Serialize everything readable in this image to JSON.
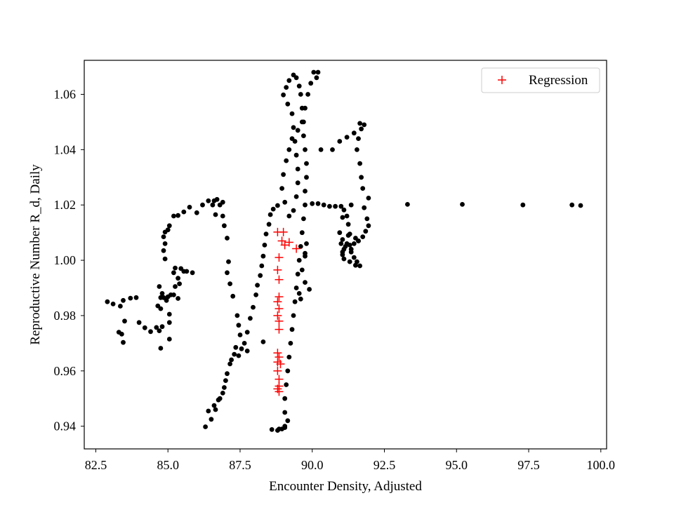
{
  "chart_data": {
    "type": "scatter",
    "title": "",
    "xlabel": "Encounter Density, Adjusted",
    "ylabel": "Reproductive Number R_d, Daily",
    "xlim": [
      82.1,
      100.2
    ],
    "ylim": [
      0.9318,
      1.0723
    ],
    "xticks": [
      82.5,
      85.0,
      87.5,
      90.0,
      92.5,
      95.0,
      97.5,
      100.0
    ],
    "xtick_labels": [
      "82.5",
      "85.0",
      "87.5",
      "90.0",
      "92.5",
      "95.0",
      "97.5",
      "100.0"
    ],
    "yticks": [
      0.94,
      0.96,
      0.98,
      1.0,
      1.02,
      1.04,
      1.06
    ],
    "ytick_labels": [
      "0.94",
      "0.96",
      "0.98",
      "1.00",
      "1.02",
      "1.04",
      "1.06"
    ],
    "grid": false,
    "legend_position": "top-right",
    "series": [
      {
        "name": "",
        "marker": "circle",
        "color": "#000000",
        "points": [
          [
            82.9,
            0.985
          ],
          [
            83.1,
            0.9842
          ],
          [
            83.3,
            0.974
          ],
          [
            83.45,
            0.9703
          ],
          [
            83.4,
            0.9733
          ],
          [
            83.35,
            0.9834
          ],
          [
            83.45,
            0.9855
          ],
          [
            83.5,
            0.978
          ],
          [
            83.7,
            0.9863
          ],
          [
            83.9,
            0.9865
          ],
          [
            84.0,
            0.9775
          ],
          [
            84.2,
            0.9756
          ],
          [
            84.4,
            0.9742
          ],
          [
            84.75,
            0.9682
          ],
          [
            84.6,
            0.9757
          ],
          [
            84.7,
            0.9745
          ],
          [
            84.8,
            0.976
          ],
          [
            84.75,
            0.9825
          ],
          [
            84.65,
            0.9835
          ],
          [
            84.75,
            0.9865
          ],
          [
            84.7,
            0.9905
          ],
          [
            84.8,
            0.988
          ],
          [
            84.85,
            0.9865
          ],
          [
            84.95,
            0.9855
          ],
          [
            85.05,
            0.9805
          ],
          [
            85.05,
            0.9715
          ],
          [
            85.05,
            0.9775
          ],
          [
            85.1,
            0.9875
          ],
          [
            85.0,
            0.9868
          ],
          [
            85.2,
            0.9875
          ],
          [
            85.35,
            0.9862
          ],
          [
            85.25,
            0.9905
          ],
          [
            85.35,
            0.9935
          ],
          [
            85.4,
            0.9915
          ],
          [
            85.55,
            0.996
          ],
          [
            85.65,
            0.996
          ],
          [
            85.85,
            0.9955
          ],
          [
            85.25,
            0.9972
          ],
          [
            85.45,
            0.997
          ],
          [
            85.2,
            0.9955
          ],
          [
            84.9,
            1.0005
          ],
          [
            84.85,
            1.0035
          ],
          [
            84.9,
            1.006
          ],
          [
            84.85,
            1.0085
          ],
          [
            84.9,
            1.0102
          ],
          [
            85.0,
            1.011
          ],
          [
            85.05,
            1.0125
          ],
          [
            85.2,
            1.016
          ],
          [
            85.35,
            1.0162
          ],
          [
            85.55,
            1.0175
          ],
          [
            85.75,
            1.0192
          ],
          [
            86.0,
            1.0172
          ],
          [
            86.2,
            1.02
          ],
          [
            86.4,
            1.0215
          ],
          [
            86.55,
            1.02
          ],
          [
            86.65,
            1.0165
          ],
          [
            86.6,
            1.0215
          ],
          [
            86.7,
            1.022
          ],
          [
            86.8,
            1.02
          ],
          [
            86.9,
            1.021
          ],
          [
            86.9,
            1.016
          ],
          [
            86.95,
            1.0125
          ],
          [
            87.05,
            1.008
          ],
          [
            87.1,
            0.9995
          ],
          [
            87.05,
            0.9955
          ],
          [
            87.15,
            0.9915
          ],
          [
            87.25,
            0.987
          ],
          [
            87.4,
            0.98
          ],
          [
            87.45,
            0.9765
          ],
          [
            87.5,
            0.973
          ],
          [
            87.35,
            0.9685
          ],
          [
            87.2,
            0.964
          ],
          [
            87.0,
            0.9565
          ],
          [
            86.9,
            0.952
          ],
          [
            86.75,
            0.9495
          ],
          [
            86.65,
            0.946
          ],
          [
            86.5,
            0.9425
          ],
          [
            86.3,
            0.9398
          ],
          [
            86.4,
            0.9455
          ],
          [
            86.6,
            0.9475
          ],
          [
            86.8,
            0.95
          ],
          [
            86.95,
            0.954
          ],
          [
            87.05,
            0.959
          ],
          [
            87.15,
            0.9625
          ],
          [
            87.3,
            0.966
          ],
          [
            87.45,
            0.9655
          ],
          [
            87.55,
            0.968
          ],
          [
            87.65,
            0.97
          ],
          [
            87.75,
            0.974
          ],
          [
            87.85,
            0.979
          ],
          [
            87.95,
            0.983
          ],
          [
            88.05,
            0.9875
          ],
          [
            88.1,
            0.991
          ],
          [
            88.2,
            0.9945
          ],
          [
            88.25,
            0.998
          ],
          [
            88.3,
            1.0015
          ],
          [
            88.35,
            1.0055
          ],
          [
            88.4,
            1.0095
          ],
          [
            88.5,
            1.013
          ],
          [
            88.55,
            1.0165
          ],
          [
            88.65,
            1.0185
          ],
          [
            88.8,
            1.0198
          ],
          [
            88.6,
            0.9388
          ],
          [
            88.8,
            0.9385
          ],
          [
            88.95,
            0.939
          ],
          [
            89.05,
            0.94
          ],
          [
            89.15,
            0.942
          ],
          [
            89.05,
            0.945
          ],
          [
            89.05,
            0.95
          ],
          [
            89.1,
            0.955
          ],
          [
            89.15,
            0.96
          ],
          [
            89.2,
            0.965
          ],
          [
            89.25,
            0.97
          ],
          [
            89.3,
            0.975
          ],
          [
            89.35,
            0.98
          ],
          [
            89.4,
            0.985
          ],
          [
            89.45,
            0.99
          ],
          [
            89.5,
            0.995
          ],
          [
            89.55,
            1.0
          ],
          [
            89.6,
            1.005
          ],
          [
            89.65,
            1.01
          ],
          [
            89.7,
            1.015
          ],
          [
            89.75,
            1.02
          ],
          [
            89.75,
            1.025
          ],
          [
            89.8,
            1.03
          ],
          [
            89.8,
            1.035
          ],
          [
            89.75,
            1.04
          ],
          [
            89.7,
            1.045
          ],
          [
            89.7,
            1.05
          ],
          [
            89.65,
            1.055
          ],
          [
            89.6,
            1.06
          ],
          [
            89.55,
            1.063
          ],
          [
            89.45,
            1.066
          ],
          [
            89.35,
            1.067
          ],
          [
            89.2,
            1.065
          ],
          [
            89.1,
            1.0625
          ],
          [
            89.0,
            1.0598
          ],
          [
            89.15,
            1.0565
          ],
          [
            89.3,
            1.053
          ],
          [
            89.35,
            1.048
          ],
          [
            89.4,
            1.043
          ],
          [
            89.45,
            1.038
          ],
          [
            89.5,
            1.033
          ],
          [
            89.5,
            1.028
          ],
          [
            89.45,
            1.023
          ],
          [
            89.35,
            1.018
          ],
          [
            89.2,
            1.016
          ],
          [
            89.05,
            1.021
          ],
          [
            88.95,
            1.026
          ],
          [
            89.0,
            1.031
          ],
          [
            89.1,
            1.036
          ],
          [
            89.2,
            1.04
          ],
          [
            89.3,
            1.044
          ],
          [
            89.5,
            1.047
          ],
          [
            89.65,
            1.05
          ],
          [
            89.75,
            1.055
          ],
          [
            89.85,
            1.06
          ],
          [
            89.95,
            1.064
          ],
          [
            90.05,
            1.068
          ],
          [
            90.2,
            1.068
          ],
          [
            90.15,
            1.066
          ],
          [
            89.55,
            0.988
          ],
          [
            89.65,
            0.9965
          ],
          [
            89.75,
            1.0025
          ],
          [
            89.8,
            1.006
          ],
          [
            89.75,
            1.0015
          ],
          [
            89.75,
            0.992
          ],
          [
            89.6,
            0.986
          ],
          [
            89.9,
            0.9895
          ],
          [
            90.0,
            1.0205
          ],
          [
            90.2,
            1.0205
          ],
          [
            90.4,
            1.02
          ],
          [
            90.6,
            1.0195
          ],
          [
            90.8,
            1.0195
          ],
          [
            91.0,
            1.0195
          ],
          [
            91.1,
            1.0182
          ],
          [
            91.2,
            1.016
          ],
          [
            91.25,
            1.013
          ],
          [
            91.25,
            1.009
          ],
          [
            91.2,
            1.006
          ],
          [
            91.1,
            1.004
          ],
          [
            91.05,
            1.0075
          ],
          [
            91.0,
            1.006
          ],
          [
            91.05,
            1.003
          ],
          [
            91.1,
            1.0005
          ],
          [
            91.3,
            0.9995
          ],
          [
            91.5,
            0.9982
          ],
          [
            91.65,
            0.998
          ],
          [
            91.55,
            0.9995
          ],
          [
            91.45,
            1.001
          ],
          [
            91.35,
            1.003
          ],
          [
            91.3,
            1.0055
          ],
          [
            91.45,
            1.006
          ],
          [
            91.6,
            1.007
          ],
          [
            91.75,
            1.0085
          ],
          [
            91.85,
            1.0105
          ],
          [
            91.95,
            1.0125
          ],
          [
            91.9,
            1.015
          ],
          [
            91.8,
            1.019
          ],
          [
            91.95,
            1.0225
          ],
          [
            91.75,
            1.026
          ],
          [
            91.7,
            1.03
          ],
          [
            91.65,
            1.035
          ],
          [
            91.55,
            1.04
          ],
          [
            91.6,
            1.044
          ],
          [
            91.7,
            1.0475
          ],
          [
            91.8,
            1.049
          ],
          [
            91.65,
            1.0495
          ],
          [
            91.45,
            1.046
          ],
          [
            91.2,
            1.0445
          ],
          [
            90.95,
            1.043
          ],
          [
            90.7,
            1.04
          ],
          [
            90.3,
            1.04
          ],
          [
            91.35,
            1.02
          ],
          [
            91.05,
            1.0155
          ],
          [
            90.95,
            1.01
          ],
          [
            91.3,
            1.0095
          ],
          [
            91.5,
            1.008
          ],
          [
            91.6,
            1.007
          ],
          [
            91.35,
            1.004
          ],
          [
            91.15,
            1.005
          ],
          [
            91.05,
            1.002
          ],
          [
            93.3,
            1.0202
          ],
          [
            95.2,
            1.0202
          ],
          [
            97.3,
            1.02
          ],
          [
            99.0,
            1.02
          ],
          [
            99.3,
            1.0198
          ],
          [
            88.3,
            0.9705
          ],
          [
            87.75,
            0.9672
          ],
          [
            88.85,
            0.939
          ],
          [
            89.05,
            0.9395
          ]
        ]
      },
      {
        "name": "Regression",
        "marker": "plus",
        "color": "#ff0000",
        "points": [
          [
            88.8,
            1.0102
          ],
          [
            89.0,
            1.0102
          ],
          [
            89.2,
            1.0065
          ],
          [
            89.05,
            1.0055
          ],
          [
            88.95,
            1.007
          ],
          [
            89.45,
            1.0042
          ],
          [
            88.85,
            1.001
          ],
          [
            88.8,
            0.9965
          ],
          [
            88.85,
            0.993
          ],
          [
            88.85,
            0.9868
          ],
          [
            88.8,
            0.985
          ],
          [
            88.85,
            0.9825
          ],
          [
            88.8,
            0.98
          ],
          [
            88.85,
            0.978
          ],
          [
            88.85,
            0.975
          ],
          [
            88.8,
            0.9665
          ],
          [
            88.85,
            0.965
          ],
          [
            88.8,
            0.9632
          ],
          [
            88.9,
            0.9625
          ],
          [
            88.8,
            0.96
          ],
          [
            88.85,
            0.957
          ],
          [
            88.85,
            0.9545
          ],
          [
            88.8,
            0.9535
          ],
          [
            88.85,
            0.9525
          ]
        ]
      }
    ]
  }
}
